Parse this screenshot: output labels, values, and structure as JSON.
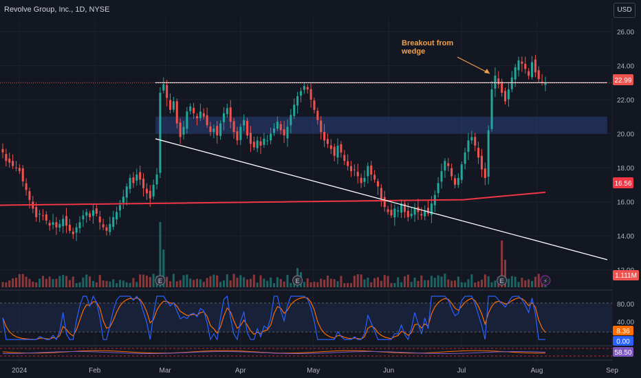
{
  "header": {
    "title": "Revolve Group, Inc., 1D, NYSE",
    "currency": "USD"
  },
  "annotation": {
    "text_line1": "Breakout from",
    "text_line2": "wedge"
  },
  "colors": {
    "up": "#26a69a",
    "down": "#ef5350",
    "ma": "#f23645",
    "stoch_k": "#2962ff",
    "stoch_d": "#ff6d00",
    "zone": "#2a3f7a",
    "bg": "#131722"
  },
  "chart_data": {
    "type": "candlestick",
    "price_axis": {
      "ylim": [
        10.9,
        26.8
      ],
      "ticks": [
        26.0,
        24.0,
        22.0,
        20.0,
        18.0,
        16.0,
        14.0,
        12.0
      ]
    },
    "time_axis": {
      "xlim": [
        "2023-12-24",
        "2024-09-01"
      ],
      "ticks": [
        {
          "date": "2024-01-01",
          "label": "2024"
        },
        {
          "date": "2024-02-01",
          "label": "Feb"
        },
        {
          "date": "2024-03-01",
          "label": "Mar"
        },
        {
          "date": "2024-04-01",
          "label": "Apr"
        },
        {
          "date": "2024-05-01",
          "label": "May"
        },
        {
          "date": "2024-06-01",
          "label": "Jun"
        },
        {
          "date": "2024-07-01",
          "label": "Jul"
        },
        {
          "date": "2024-08-01",
          "label": "Aug"
        },
        {
          "date": "2024-09-01",
          "label": "Sep"
        }
      ]
    },
    "last_price": "22.99",
    "ma_value": "16.56",
    "volume_label": "1.111M",
    "stoch_k_value": "8.36",
    "stoch_d_value": "0.00",
    "stoch_ticks": [
      "80.00",
      "40.00"
    ],
    "osc2_value": "58.50",
    "closes": [
      18.9,
      18.4,
      18.3,
      18.1,
      18.0,
      17.8,
      17.2,
      16.7,
      16.1,
      15.6,
      15.1,
      15.3,
      15.2,
      14.9,
      14.6,
      14.8,
      14.5,
      14.7,
      15.0,
      14.6,
      14.3,
      14.1,
      14.5,
      14.8,
      15.2,
      15.4,
      15.1,
      15.5,
      15.3,
      14.8,
      14.5,
      14.3,
      14.7,
      15.1,
      15.4,
      15.8,
      16.3,
      16.9,
      17.4,
      17.1,
      17.6,
      17.3,
      16.8,
      16.5,
      16.2,
      17.0,
      17.6,
      22.4,
      22.9,
      22.1,
      21.4,
      21.9,
      20.6,
      19.8,
      20.4,
      21.3,
      21.6,
      21.2,
      20.9,
      21.3,
      21.0,
      20.5,
      20.1,
      20.3,
      19.9,
      20.6,
      21.2,
      21.5,
      20.7,
      20.1,
      19.6,
      20.4,
      20.8,
      19.9,
      19.4,
      19.2,
      19.6,
      19.3,
      19.7,
      19.6,
      20.0,
      20.3,
      20.7,
      20.2,
      19.9,
      20.4,
      21.1,
      21.7,
      22.2,
      22.5,
      22.8,
      22.6,
      22.0,
      21.4,
      20.8,
      20.1,
      19.6,
      19.4,
      19.1,
      18.7,
      19.3,
      18.9,
      18.4,
      18.1,
      17.8,
      17.9,
      17.5,
      17.1,
      17.4,
      18.1,
      17.6,
      17.3,
      16.9,
      16.2,
      15.7,
      15.4,
      15.2,
      15.6,
      15.5,
      15.9,
      15.4,
      15.1,
      15.3,
      15.6,
      15.4,
      15.2,
      15.5,
      15.3,
      15.9,
      16.4,
      17.1,
      17.8,
      18.4,
      18.1,
      17.5,
      17.0,
      17.4,
      18.2,
      18.9,
      19.6,
      19.8,
      19.3,
      18.6,
      17.9,
      17.4,
      20.2,
      22.6,
      23.4,
      22.9,
      22.4,
      21.9,
      22.6,
      23.3,
      23.9,
      24.3,
      24.1,
      23.8,
      23.4,
      24.2,
      23.6,
      23.2,
      23.0,
      22.99
    ],
    "ma_range": [
      15.8,
      16.56
    ],
    "upper_line": {
      "from": [
        "2024-02-26",
        22.99
      ],
      "to": [
        "2024-08-30",
        22.99
      ]
    },
    "lower_line": {
      "from": [
        "2024-02-26",
        19.7
      ],
      "to": [
        "2024-08-30",
        12.6
      ]
    },
    "zone": {
      "from": "2024-02-26",
      "to": "2024-08-30",
      "low": 20.0,
      "high": 21.0
    }
  }
}
